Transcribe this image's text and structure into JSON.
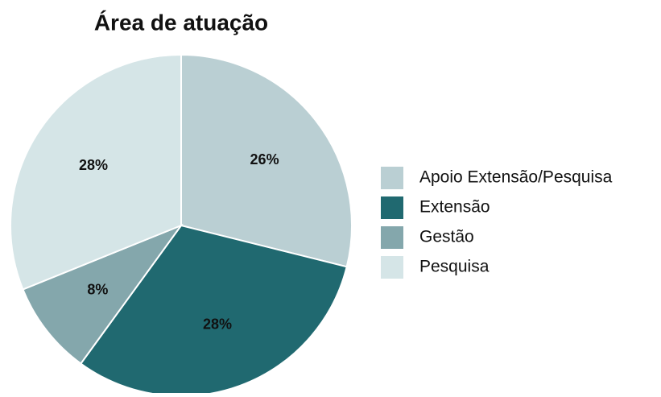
{
  "chart_data": {
    "type": "pie",
    "title": "Área de atuação",
    "categories": [
      "Apoio Extensão/Pesquisa",
      "Extensão",
      "Gestão",
      "Pesquisa"
    ],
    "values": [
      26,
      28,
      8,
      28
    ],
    "value_labels": [
      "26%",
      "28%",
      "8%",
      "28%"
    ],
    "colors": [
      "#bacfd3",
      "#206970",
      "#84a7ac",
      "#d5e5e7"
    ],
    "legend": "right"
  }
}
